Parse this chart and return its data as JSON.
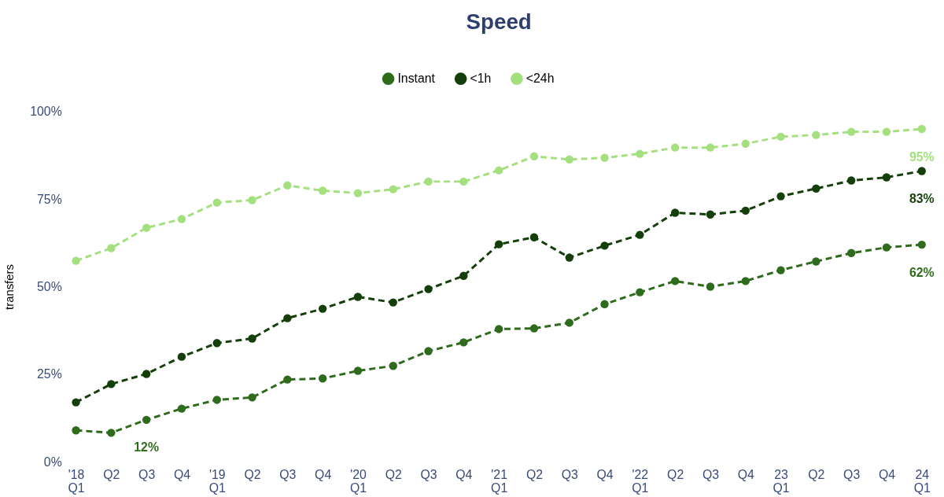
{
  "chart_data": {
    "type": "line",
    "title": "Speed",
    "ylabel": "transfers",
    "categories": [
      "'18 Q1",
      "Q2",
      "Q3",
      "Q4",
      "'19 Q1",
      "Q2",
      "Q3",
      "Q4",
      "'20 Q1",
      "Q2",
      "Q3",
      "Q4",
      "'21 Q1",
      "Q2",
      "Q3",
      "Q4",
      "'22 Q1",
      "Q2",
      "Q3",
      "Q4",
      "23 Q1",
      "Q2",
      "Q3",
      "Q4",
      "24 Q1"
    ],
    "series": [
      {
        "name": "Instant",
        "color": "#2e6b1c",
        "values": [
          9,
          8.3,
          12,
          15.2,
          17.7,
          18.4,
          23.5,
          23.8,
          26,
          27.4,
          31.6,
          34.1,
          37.9,
          38.1,
          39.7,
          45,
          48.4,
          51.6,
          50,
          51.6,
          54.7,
          57.2,
          59.6,
          61.2,
          62
        ],
        "value_labels": [
          null,
          null,
          "12%",
          null,
          null,
          null,
          null,
          null,
          null,
          null,
          null,
          null,
          null,
          null,
          null,
          null,
          null,
          null,
          null,
          null,
          null,
          null,
          null,
          null,
          "62%"
        ]
      },
      {
        "name": "<1h",
        "color": "#143f0b",
        "values": [
          17,
          22.2,
          25.1,
          30,
          33.9,
          35.2,
          41,
          43.7,
          47.1,
          45.5,
          49.3,
          53.1,
          62.1,
          64.1,
          58.3,
          61.7,
          64.8,
          71.1,
          70.6,
          71.7,
          75.8,
          78,
          80.3,
          81.2,
          83
        ],
        "value_labels": [
          null,
          null,
          null,
          null,
          null,
          null,
          null,
          null,
          null,
          null,
          null,
          null,
          null,
          null,
          null,
          null,
          null,
          null,
          null,
          null,
          null,
          null,
          null,
          null,
          "83%"
        ]
      },
      {
        "name": "<24h",
        "color": "#a5e07f",
        "values": [
          57.4,
          61,
          66.8,
          69.3,
          74,
          74.7,
          78.9,
          77.4,
          76.7,
          77.8,
          80,
          80,
          83.2,
          87.2,
          86.3,
          86.8,
          87.9,
          89.7,
          89.7,
          90.8,
          92.8,
          93.3,
          94.2,
          94.2,
          95
        ],
        "value_labels": [
          null,
          null,
          null,
          null,
          null,
          null,
          null,
          null,
          null,
          null,
          null,
          null,
          null,
          null,
          null,
          null,
          null,
          null,
          null,
          null,
          null,
          null,
          null,
          null,
          "95%"
        ]
      }
    ],
    "ylim": [
      0,
      100
    ],
    "yticks": [
      {
        "value": 0,
        "label": "0%"
      },
      {
        "value": 25,
        "label": "25%"
      },
      {
        "value": 50,
        "label": "50%"
      },
      {
        "value": 75,
        "label": "75%"
      },
      {
        "value": 100,
        "label": "100%"
      }
    ],
    "grid": false,
    "legend": "top",
    "marker": "circle",
    "line_style": "dashed"
  }
}
